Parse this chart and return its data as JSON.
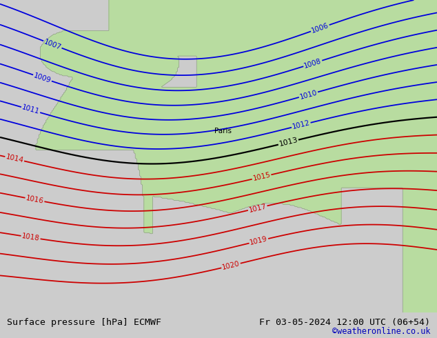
{
  "title_left": "Surface pressure [hPa] ECMWF",
  "title_right": "Fr 03-05-2024 12:00 UTC (06+54)",
  "credit": "©weatheronline.co.uk",
  "bg_color": "#cccccc",
  "land_color": "#b8dca0",
  "sea_color": "#d0d0d0",
  "bottom_bar_color": "#e8e8e8",
  "title_fontsize": 9.5,
  "credit_color": "#0000bb",
  "isobar_blue": "#0000dd",
  "isobar_red": "#cc0000",
  "isobar_black": "#000000",
  "paris_label": "Paris",
  "label_fontsize": 7.5,
  "coastline_color": "#888888"
}
